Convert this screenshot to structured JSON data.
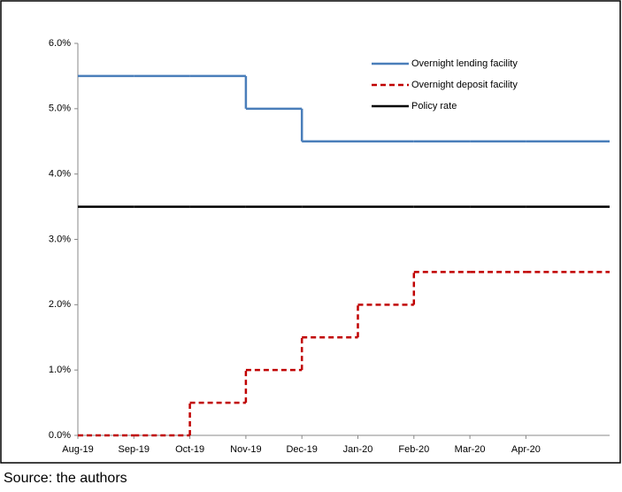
{
  "chart_data": {
    "type": "step",
    "categories": [
      "Aug-19",
      "Sep-19",
      "Oct-19",
      "Nov-19",
      "Dec-19",
      "Jan-20",
      "Feb-20",
      "Mar-20",
      "Apr-20"
    ],
    "series": [
      {
        "name": "Overnight lending facility",
        "color": "#4a7eba",
        "style": "solid",
        "values": [
          5.5,
          5.5,
          5.5,
          5.0,
          4.5,
          4.5,
          4.5,
          4.5,
          4.5
        ]
      },
      {
        "name": "Overnight deposit facility",
        "color": "#c00000",
        "style": "dashed",
        "values": [
          0,
          0,
          0.5,
          1.0,
          1.5,
          2.0,
          2.5,
          2.5,
          2.5
        ]
      },
      {
        "name": "Policy rate",
        "color": "#000000",
        "style": "solid",
        "values": [
          3.5,
          3.5,
          3.5,
          3.5,
          3.5,
          3.5,
          3.5,
          3.5,
          3.5
        ]
      }
    ],
    "ylim": [
      0,
      6
    ],
    "yticks": [
      {
        "value": 0,
        "label": "0.0%"
      },
      {
        "value": 1,
        "label": "1.0%"
      },
      {
        "value": 2,
        "label": "2.0%"
      },
      {
        "value": 3,
        "label": "3.0%"
      },
      {
        "value": 4,
        "label": "4.0%"
      },
      {
        "value": 5,
        "label": "5.0%"
      },
      {
        "value": 6,
        "label": "6.0%"
      }
    ],
    "grid": false,
    "legend": "top-right",
    "source": "Source: the authors"
  }
}
